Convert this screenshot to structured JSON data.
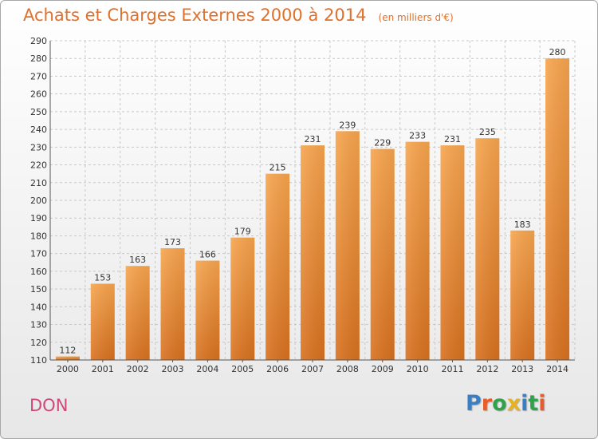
{
  "header": {
    "title": "Achats et Charges Externes 2000 à 2014",
    "unit": "(en milliers d'€)"
  },
  "footer": {
    "place": "DON",
    "brand": "Proxiti"
  },
  "colors": {
    "title": "#e0702a",
    "place": "#d0487b",
    "bar_top": "#f7a54e",
    "bar_bottom": "#d8711f",
    "grid": "#c8c8c8",
    "brand_letters": [
      "#3a7fc4",
      "#e85b2a",
      "#2ea34a",
      "#e8b21e",
      "#3a7fc4",
      "#2ea34a",
      "#e85b2a"
    ]
  },
  "chart_data": {
    "type": "bar",
    "title": "Achats et Charges Externes 2000 à 2014",
    "subtitle": "(en milliers d'€)",
    "xlabel": "",
    "ylabel": "",
    "categories": [
      "2000",
      "2001",
      "2002",
      "2003",
      "2004",
      "2005",
      "2006",
      "2007",
      "2008",
      "2009",
      "2010",
      "2011",
      "2012",
      "2013",
      "2014"
    ],
    "values": [
      112,
      153,
      163,
      173,
      166,
      179,
      215,
      231,
      239,
      229,
      233,
      231,
      235,
      183,
      280
    ],
    "ylim": [
      110,
      290
    ],
    "yticks": [
      110,
      120,
      130,
      140,
      150,
      160,
      170,
      180,
      190,
      200,
      210,
      220,
      230,
      240,
      250,
      260,
      270,
      280,
      290
    ],
    "grid": true,
    "data_labels": true,
    "legend": "none"
  }
}
